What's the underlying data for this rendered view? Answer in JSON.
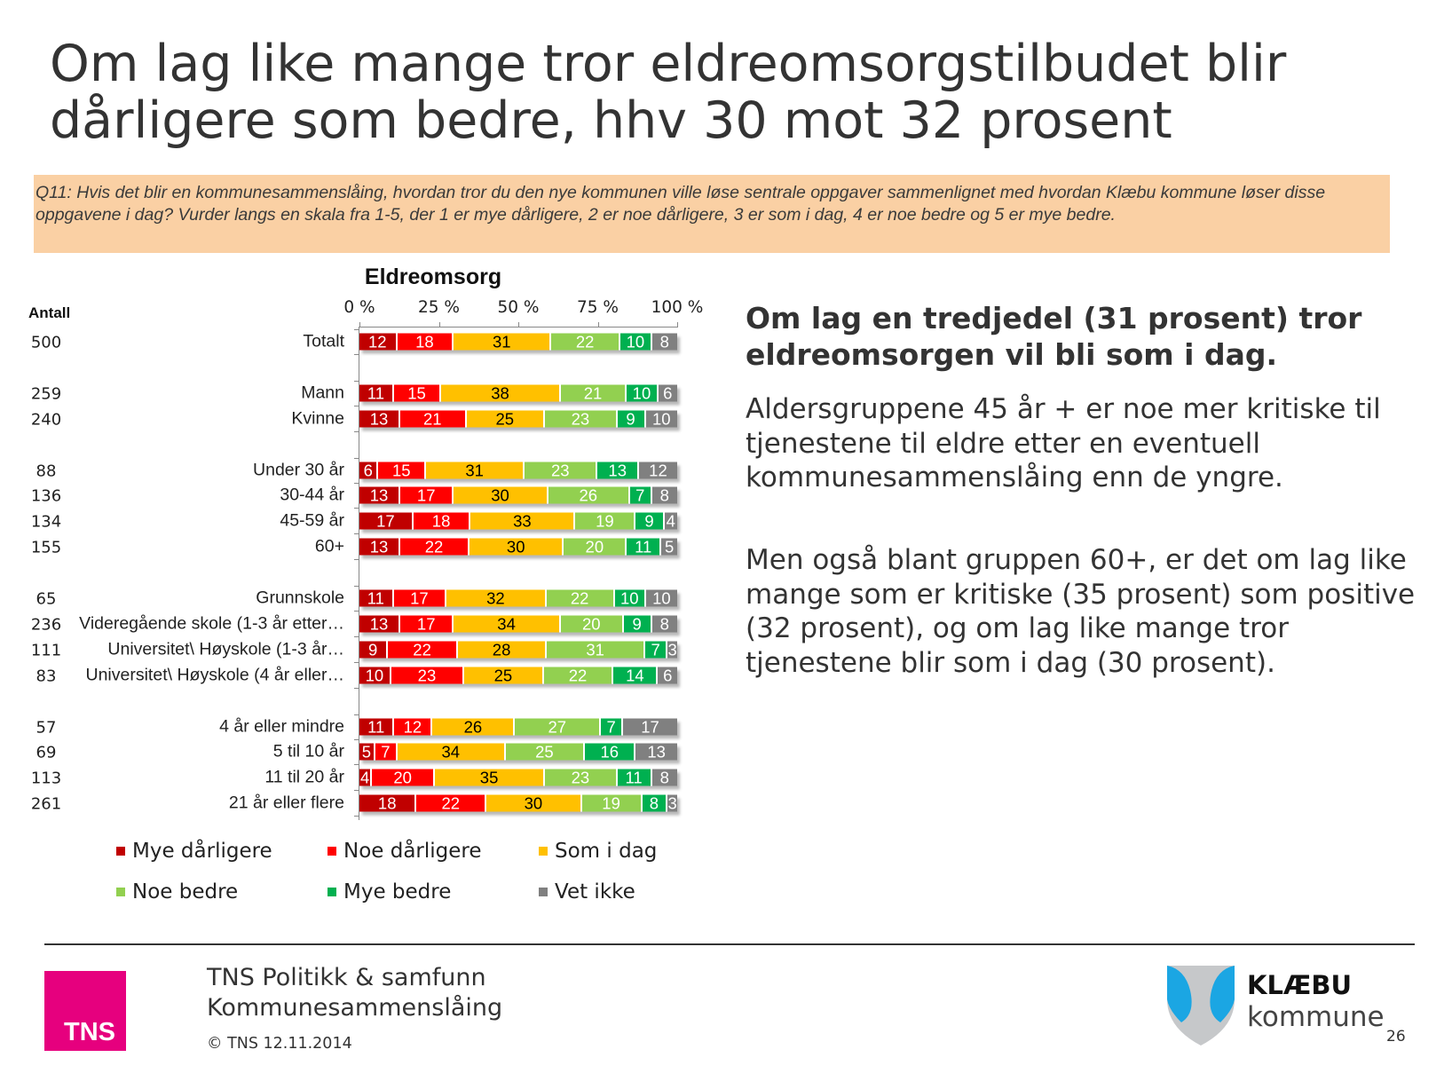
{
  "title": "Om lag like mange tror eldreomsorgstilbudet blir dårligere som bedre, hhv 30 mot 32 prosent",
  "question": "Q11: Hvis det blir en kommunesammenslåing, hvordan tror du den nye kommunen ville løse sentrale oppgaver sammenlignet med hvordan Klæbu kommune løser disse oppgavene i dag? Vurder langs en skala fra 1-5, der 1 er mye dårligere, 2 er noe dårligere, 3 er som i dag, 4 er noe bedre og 5 er mye bedre.",
  "chart_data": {
    "type": "bar",
    "orientation": "horizontal-stacked-100",
    "title": "Eldreomsorg",
    "n_header": "Antall",
    "xlim": [
      0,
      100
    ],
    "x_ticks": [
      "0 %",
      "25 %",
      "50 %",
      "75 %",
      "100 %"
    ],
    "legend_position": "bottom",
    "series_names": [
      "Mye dårligere",
      "Noe dårligere",
      "Som i dag",
      "Noe bedre",
      "Mye bedre",
      "Vet ikke"
    ],
    "series_colors": [
      "#C00000",
      "#FF0000",
      "#FFC000",
      "#92D050",
      "#00B050",
      "#808080"
    ],
    "label_colors": [
      "#ffffff",
      "#ffffff",
      "#000000",
      "#ffffff",
      "#ffffff",
      "#ffffff"
    ],
    "rows": [
      {
        "label": "Totalt",
        "n": "500",
        "values": [
          12,
          18,
          31,
          22,
          10,
          8
        ],
        "group": 0
      },
      {
        "label": "Mann",
        "n": "259",
        "values": [
          11,
          15,
          38,
          21,
          10,
          6
        ],
        "group": 1
      },
      {
        "label": "Kvinne",
        "n": "240",
        "values": [
          13,
          21,
          25,
          23,
          9,
          10
        ],
        "group": 1
      },
      {
        "label": "Under 30 år",
        "n": "88",
        "values": [
          6,
          15,
          31,
          23,
          13,
          12
        ],
        "group": 2
      },
      {
        "label": "30-44 år",
        "n": "136",
        "values": [
          13,
          17,
          30,
          26,
          7,
          8
        ],
        "group": 2
      },
      {
        "label": "45-59 år",
        "n": "134",
        "values": [
          17,
          18,
          33,
          19,
          9,
          4
        ],
        "group": 2
      },
      {
        "label": "60+",
        "n": "155",
        "values": [
          13,
          22,
          30,
          20,
          11,
          5
        ],
        "group": 2
      },
      {
        "label": "Grunnskole",
        "n": "65",
        "values": [
          11,
          17,
          32,
          22,
          10,
          10
        ],
        "group": 3
      },
      {
        "label": "Videregående skole (1-3 år etter…",
        "n": "236",
        "values": [
          13,
          17,
          34,
          20,
          9,
          8
        ],
        "group": 3
      },
      {
        "label": "Universitet\\ Høyskole (1-3 år…",
        "n": "111",
        "values": [
          9,
          22,
          28,
          31,
          7,
          3
        ],
        "group": 3
      },
      {
        "label": "Universitet\\ Høyskole (4 år eller…",
        "n": "83",
        "values": [
          10,
          23,
          25,
          22,
          14,
          6
        ],
        "group": 3
      },
      {
        "label": "4 år eller mindre",
        "n": "57",
        "values": [
          11,
          12,
          26,
          27,
          7,
          17
        ],
        "group": 4
      },
      {
        "label": "5 til 10 år",
        "n": "69",
        "values": [
          5,
          7,
          34,
          25,
          16,
          13
        ],
        "group": 4
      },
      {
        "label": "11 til 20 år",
        "n": "113",
        "values": [
          4,
          20,
          35,
          23,
          11,
          8
        ],
        "group": 4
      },
      {
        "label": "21 år eller flere",
        "n": "261",
        "values": [
          18,
          22,
          30,
          19,
          8,
          3
        ],
        "group": 4
      }
    ]
  },
  "right": {
    "heading": "Om lag en tredjedel (31 prosent) tror eldreomsorgen vil bli som i dag.",
    "para1": "Aldersgruppene 45 år + er noe mer kritiske til tjenestene til eldre etter en eventuell kommunesammenslåing enn de yngre.",
    "para2": "Men også blant gruppen 60+, er det om lag like mange som er kritiske (35 prosent) som positive (32 prosent), og om lag like mange tror tjenestene blir som i dag (30 prosent)."
  },
  "footer": {
    "logo_text": "TNS",
    "line1": "TNS Politikk & samfunn",
    "line2": "Kommunesammenslåing",
    "copyright": "© TNS 12.11.2014",
    "klaebu_name": "KLÆBU",
    "klaebu_sub": "kommune",
    "page_number": "26"
  }
}
